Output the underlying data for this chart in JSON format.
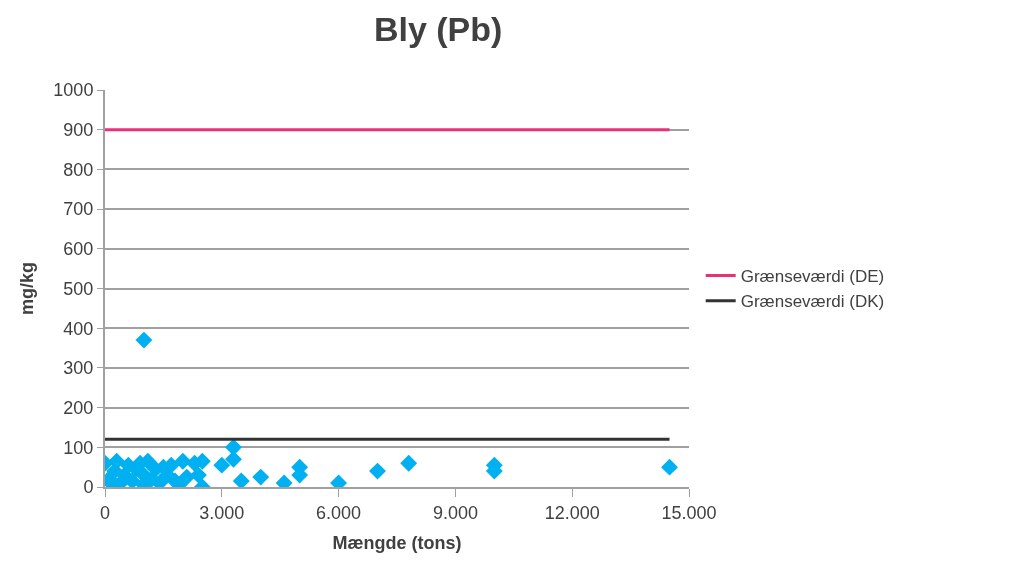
{
  "chart_data": {
    "type": "scatter",
    "title": "Bly (Pb)",
    "xlabel": "Mængde (tons)",
    "ylabel": "mg/kg",
    "xlim": [
      0,
      15000
    ],
    "xticks": [
      {
        "value": 0,
        "label": "0"
      },
      {
        "value": 3000,
        "label": "3.000"
      },
      {
        "value": 6000,
        "label": "6.000"
      },
      {
        "value": 9000,
        "label": "9.000"
      },
      {
        "value": 12000,
        "label": "12.000"
      },
      {
        "value": 15000,
        "label": "15.000"
      }
    ],
    "ylim": [
      0,
      1000
    ],
    "yticks": [
      0,
      100,
      200,
      300,
      400,
      500,
      600,
      700,
      800,
      900,
      1000
    ],
    "grid": "y",
    "legend": "right",
    "marker": "diamond",
    "series": [
      {
        "color": "#00b0f0",
        "x": [
          0,
          100,
          200,
          250,
          300,
          400,
          500,
          600,
          700,
          800,
          900,
          1000,
          1000,
          1000,
          1100,
          1200,
          1300,
          1400,
          1500,
          1600,
          1700,
          1800,
          1900,
          2000,
          2100,
          2300,
          2400,
          2500,
          2500,
          3000,
          3300,
          3300,
          3500,
          4000,
          4600,
          5000,
          5000,
          6000,
          7000,
          7800,
          10000,
          10000,
          14500
        ],
        "values": [
          60,
          20,
          5,
          40,
          65,
          10,
          30,
          55,
          15,
          45,
          60,
          5,
          30,
          370,
          65,
          20,
          45,
          10,
          50,
          30,
          55,
          15,
          5,
          65,
          25,
          60,
          30,
          65,
          0,
          55,
          100,
          70,
          15,
          25,
          10,
          50,
          30,
          10,
          40,
          60,
          55,
          40,
          50
        ]
      },
      {
        "type": "line",
        "name": "Grænseværdi (DE)",
        "color": "#e8317a",
        "x": [
          0,
          14500
        ],
        "values": [
          900,
          900
        ],
        "marker": "none"
      },
      {
        "type": "line",
        "name": "Grænseværdi (DK)",
        "color": "#333333",
        "x": [
          0,
          14500
        ],
        "values": [
          120,
          120
        ],
        "marker": "none"
      }
    ]
  }
}
